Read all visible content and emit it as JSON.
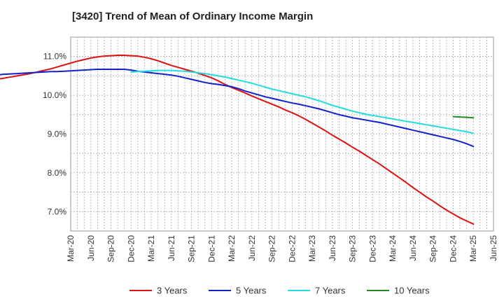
{
  "chart_data": {
    "type": "line",
    "title": "[3420]  Trend of Mean of Ordinary Income Margin",
    "xlabel": "",
    "ylabel": "",
    "x_ticks": [
      "Mar-20",
      "Jun-20",
      "Sep-20",
      "Dec-20",
      "Mar-21",
      "Jun-21",
      "Sep-21",
      "Dec-21",
      "Mar-22",
      "Jun-22",
      "Sep-22",
      "Dec-22",
      "Mar-23",
      "Jun-23",
      "Sep-23",
      "Dec-23",
      "Mar-24",
      "Jun-24",
      "Sep-24",
      "Dec-24",
      "Mar-25",
      "Jun-25"
    ],
    "y_ticks": [
      "7.0%",
      "8.0%",
      "9.0%",
      "10.0%",
      "11.0%"
    ],
    "y_tick_values": [
      7.0,
      8.0,
      9.0,
      10.0,
      11.0
    ],
    "ylim": [
      6.5,
      11.5
    ],
    "grid": true,
    "legend_position": "bottom",
    "series": [
      {
        "name": "3 Years",
        "color": "#dd1111",
        "values": [
          9.92,
          9.92,
          9.93,
          9.95,
          9.97,
          9.99,
          10.01,
          10.02,
          10.04,
          10.06,
          10.08,
          10.12,
          10.16,
          10.2,
          10.24,
          10.28,
          10.32,
          10.35,
          10.38,
          10.41,
          10.44,
          10.47,
          10.5,
          10.53,
          10.56,
          10.6,
          10.64,
          10.68,
          10.73,
          10.78,
          10.83,
          10.88,
          10.92,
          10.96,
          10.99,
          11.01,
          11.02,
          11.03,
          11.03,
          11.02,
          11.01,
          10.98,
          10.94,
          10.89,
          10.83,
          10.77,
          10.72,
          10.67,
          10.62,
          10.57,
          10.51,
          10.45,
          10.37,
          10.28,
          10.2,
          10.13,
          10.06,
          9.98,
          9.91,
          9.84,
          9.77,
          9.7,
          9.62,
          9.55,
          9.47,
          9.38,
          9.28,
          9.18,
          9.08,
          8.97,
          8.87,
          8.77,
          8.66,
          8.56,
          8.45,
          8.34,
          8.23,
          8.11,
          7.99,
          7.87,
          7.75,
          7.62,
          7.5,
          7.38,
          7.27,
          7.15,
          7.04,
          6.94,
          6.84,
          6.76,
          6.68
        ]
      },
      {
        "name": "5 Years",
        "color": "#1122cc",
        "values": [
          10.2,
          10.23,
          10.26,
          10.29,
          10.32,
          10.35,
          10.38,
          10.41,
          10.43,
          10.45,
          10.47,
          10.49,
          10.51,
          10.52,
          10.54,
          10.55,
          10.56,
          10.57,
          10.58,
          10.59,
          10.6,
          10.61,
          10.61,
          10.62,
          10.63,
          10.64,
          10.65,
          10.66,
          10.67,
          10.67,
          10.67,
          10.67,
          10.67,
          10.65,
          10.62,
          10.6,
          10.58,
          10.56,
          10.54,
          10.52,
          10.49,
          10.45,
          10.41,
          10.37,
          10.33,
          10.3,
          10.28,
          10.25,
          10.22,
          10.17,
          10.11,
          10.06,
          10.01,
          9.96,
          9.92,
          9.88,
          9.84,
          9.8,
          9.77,
          9.73,
          9.69,
          9.65,
          9.6,
          9.55,
          9.5,
          9.46,
          9.42,
          9.39,
          9.36,
          9.33,
          9.3,
          9.26,
          9.22,
          9.18,
          9.14,
          9.1,
          9.06,
          9.02,
          8.98,
          8.94,
          8.9,
          8.86,
          8.81,
          8.75,
          8.68
        ]
      },
      {
        "name": "7 Years",
        "color": "#22dddd",
        "values": [
          10.6,
          10.61,
          10.62,
          10.63,
          10.64,
          10.64,
          10.64,
          10.63,
          10.62,
          10.6,
          10.58,
          10.56,
          10.53,
          10.5,
          10.47,
          10.43,
          10.39,
          10.35,
          10.31,
          10.26,
          10.21,
          10.16,
          10.12,
          10.08,
          10.04,
          10.0,
          9.96,
          9.91,
          9.86,
          9.8,
          9.74,
          9.69,
          9.64,
          9.59,
          9.55,
          9.51,
          9.48,
          9.45,
          9.42,
          9.39,
          9.36,
          9.33,
          9.3,
          9.27,
          9.24,
          9.21,
          9.18,
          9.15,
          9.12,
          9.09,
          9.06,
          9.02
        ]
      },
      {
        "name": "10 Years",
        "color": "#228822",
        "values": [
          9.45,
          9.44,
          9.43,
          9.42
        ]
      }
    ]
  }
}
